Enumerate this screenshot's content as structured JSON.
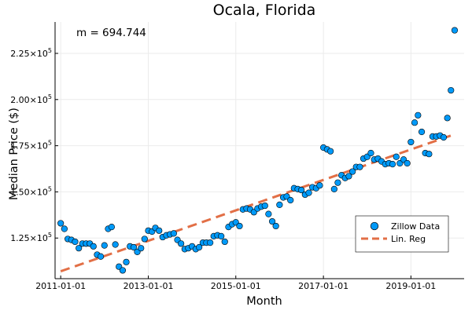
{
  "chart_data": {
    "type": "scatter",
    "title": "Ocala, Florida",
    "xlabel": "Month",
    "ylabel": "Median Price ($)",
    "annotation": "m = 694.744",
    "x_ticks": [
      {
        "label": "2011-01-01",
        "value": "2011-01-01"
      },
      {
        "label": "2013-01-01",
        "value": "2013-01-01"
      },
      {
        "label": "2015-01-01",
        "value": "2015-01-01"
      },
      {
        "label": "2017-01-01",
        "value": "2017-01-01"
      },
      {
        "label": "2019-01-01",
        "value": "2019-01-01"
      }
    ],
    "y_ticks": [
      {
        "mantissa": "1.25",
        "value": 125000
      },
      {
        "mantissa": "1.50",
        "value": 150000
      },
      {
        "mantissa": "1.75",
        "value": 175000
      },
      {
        "mantissa": "2.00",
        "value": 200000
      },
      {
        "mantissa": "2.25",
        "value": 225000
      }
    ],
    "tick_multiplier": "×10",
    "tick_exponent": "5",
    "xlim": [
      "2010-11-15",
      "2020-03-20"
    ],
    "ylim": [
      103000,
      242000
    ],
    "grid": true,
    "legend_position": "bottom-right",
    "colors": {
      "points": "#009af9",
      "point_stroke": "#000000",
      "regression": "#e26f46",
      "grid": "#ebebeb",
      "axis": "#000000"
    },
    "series": [
      {
        "name": "Zillow Data",
        "kind": "scatter",
        "points": [
          [
            "2011-01-01",
            133000
          ],
          [
            "2011-02-01",
            130000
          ],
          [
            "2011-03-01",
            124500
          ],
          [
            "2011-04-01",
            124000
          ],
          [
            "2011-05-01",
            123000
          ],
          [
            "2011-06-01",
            119500
          ],
          [
            "2011-07-01",
            122000
          ],
          [
            "2011-08-01",
            122000
          ],
          [
            "2011-09-01",
            122000
          ],
          [
            "2011-10-01",
            120500
          ],
          [
            "2011-11-01",
            116000
          ],
          [
            "2011-12-01",
            115000
          ],
          [
            "2012-01-01",
            121000
          ],
          [
            "2012-02-01",
            130000
          ],
          [
            "2012-03-01",
            131000
          ],
          [
            "2012-04-01",
            121500
          ],
          [
            "2012-05-01",
            109500
          ],
          [
            "2012-06-01",
            107500
          ],
          [
            "2012-07-01",
            112000
          ],
          [
            "2012-08-01",
            120500
          ],
          [
            "2012-09-01",
            120000
          ],
          [
            "2012-10-01",
            117500
          ],
          [
            "2012-11-01",
            119500
          ],
          [
            "2012-12-01",
            124500
          ],
          [
            "2013-01-01",
            129000
          ],
          [
            "2013-02-01",
            128500
          ],
          [
            "2013-03-01",
            130500
          ],
          [
            "2013-04-01",
            129000
          ],
          [
            "2013-05-01",
            125500
          ],
          [
            "2013-06-01",
            126500
          ],
          [
            "2013-07-01",
            127000
          ],
          [
            "2013-08-01",
            127500
          ],
          [
            "2013-09-01",
            124000
          ],
          [
            "2013-10-01",
            122000
          ],
          [
            "2013-11-01",
            119000
          ],
          [
            "2013-12-01",
            119500
          ],
          [
            "2014-01-01",
            120500
          ],
          [
            "2014-02-01",
            119000
          ],
          [
            "2014-03-01",
            120000
          ],
          [
            "2014-04-01",
            122500
          ],
          [
            "2014-05-01",
            122500
          ],
          [
            "2014-06-01",
            122500
          ],
          [
            "2014-07-01",
            126000
          ],
          [
            "2014-08-01",
            126500
          ],
          [
            "2014-09-01",
            126000
          ],
          [
            "2014-10-01",
            123000
          ],
          [
            "2014-11-01",
            131000
          ],
          [
            "2014-12-01",
            132500
          ],
          [
            "2015-01-01",
            133500
          ],
          [
            "2015-02-01",
            131500
          ],
          [
            "2015-03-01",
            140500
          ],
          [
            "2015-04-01",
            141000
          ],
          [
            "2015-05-01",
            140500
          ],
          [
            "2015-06-01",
            139000
          ],
          [
            "2015-07-01",
            141000
          ],
          [
            "2015-08-01",
            142000
          ],
          [
            "2015-09-01",
            142500
          ],
          [
            "2015-10-01",
            138000
          ],
          [
            "2015-11-01",
            134000
          ],
          [
            "2015-12-01",
            131500
          ],
          [
            "2016-01-01",
            143000
          ],
          [
            "2016-02-01",
            147000
          ],
          [
            "2016-03-01",
            147500
          ],
          [
            "2016-04-01",
            145500
          ],
          [
            "2016-05-01",
            152000
          ],
          [
            "2016-06-01",
            151500
          ],
          [
            "2016-07-01",
            151000
          ],
          [
            "2016-08-01",
            148500
          ],
          [
            "2016-09-01",
            149500
          ],
          [
            "2016-10-01",
            152500
          ],
          [
            "2016-11-01",
            152000
          ],
          [
            "2016-12-01",
            153500
          ],
          [
            "2017-01-01",
            174000
          ],
          [
            "2017-02-01",
            173000
          ],
          [
            "2017-03-01",
            172000
          ],
          [
            "2017-04-01",
            151500
          ],
          [
            "2017-05-01",
            155000
          ],
          [
            "2017-06-01",
            159000
          ],
          [
            "2017-07-01",
            157500
          ],
          [
            "2017-08-01",
            158500
          ],
          [
            "2017-09-01",
            161000
          ],
          [
            "2017-10-01",
            163500
          ],
          [
            "2017-11-01",
            163500
          ],
          [
            "2017-12-01",
            168000
          ],
          [
            "2018-01-01",
            169000
          ],
          [
            "2018-02-01",
            171000
          ],
          [
            "2018-03-01",
            167500
          ],
          [
            "2018-04-01",
            168000
          ],
          [
            "2018-05-01",
            166500
          ],
          [
            "2018-06-01",
            165000
          ],
          [
            "2018-07-01",
            165500
          ],
          [
            "2018-08-01",
            165000
          ],
          [
            "2018-09-01",
            169000
          ],
          [
            "2018-10-01",
            165500
          ],
          [
            "2018-11-01",
            167500
          ],
          [
            "2018-12-01",
            165500
          ],
          [
            "2019-01-01",
            177000
          ],
          [
            "2019-02-01",
            187500
          ],
          [
            "2019-03-01",
            191500
          ],
          [
            "2019-04-01",
            182500
          ],
          [
            "2019-05-01",
            171000
          ],
          [
            "2019-06-01",
            170500
          ],
          [
            "2019-07-01",
            180000
          ],
          [
            "2019-08-01",
            180000
          ],
          [
            "2019-09-01",
            180500
          ],
          [
            "2019-10-01",
            179500
          ],
          [
            "2019-11-01",
            190000
          ],
          [
            "2019-12-01",
            205000
          ],
          [
            "2020-01-01",
            237500
          ]
        ]
      },
      {
        "name": "Lin. Reg",
        "kind": "line",
        "style": "dashed",
        "points": [
          [
            "2011-01-01",
            107000
          ],
          [
            "2019-12-01",
            180500
          ]
        ]
      }
    ]
  }
}
